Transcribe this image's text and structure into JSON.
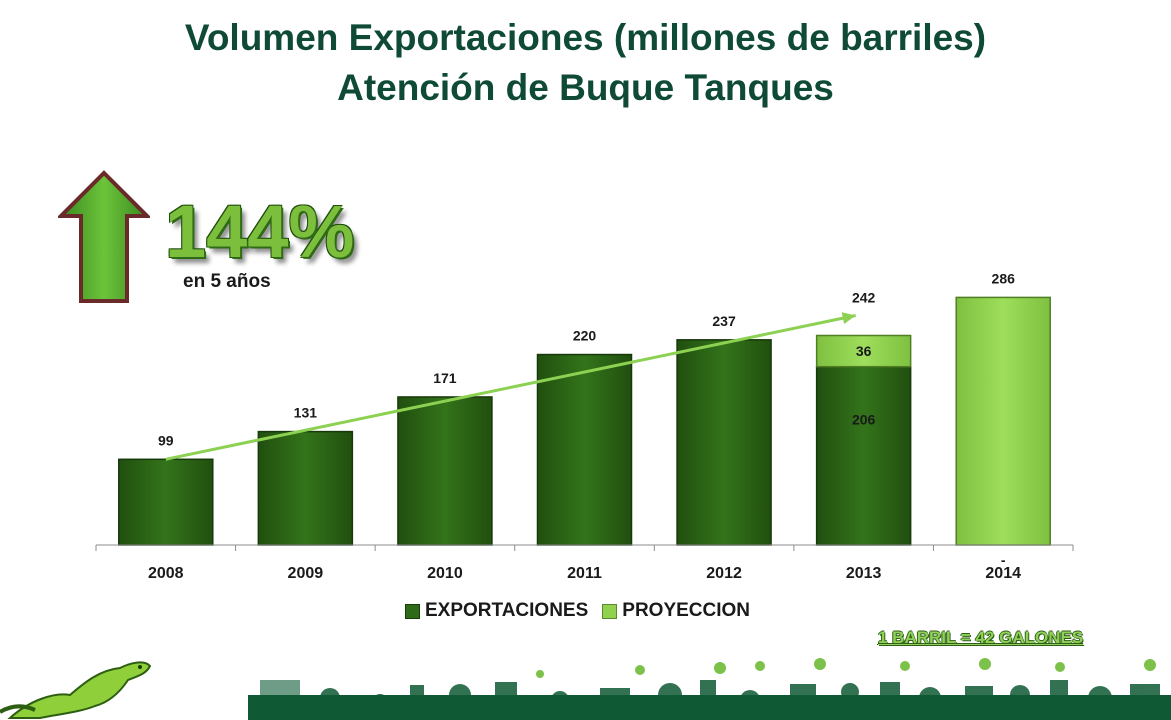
{
  "title_line1": "Volumen Exportaciones (millones de barriles)",
  "title_line2": "Atención de Buque Tanques",
  "growth": {
    "value": "144%",
    "caption": "en 5 años"
  },
  "note": "1 BARRIL  = 42 GALONES",
  "colors": {
    "title": "#0e4a35",
    "exportaciones": "#2e6b17",
    "proyeccion": "#92d050",
    "trend": "#8cd152",
    "arrow": "#4ea02a"
  },
  "icons": {
    "growth_arrow": "up-arrow-icon",
    "mascot": "iguana-icon"
  },
  "chart_data": {
    "type": "bar",
    "stacked": true,
    "categories": [
      "2008",
      "2009",
      "2010",
      "2011",
      "2012",
      "2013",
      "2014"
    ],
    "series": [
      {
        "name": "EXPORTACIONES",
        "values": [
          99,
          131,
          171,
          220,
          237,
          206,
          null
        ],
        "labels": [
          "99",
          "131",
          "171",
          "220",
          "237",
          "206",
          "-"
        ]
      },
      {
        "name": "PROYECCION",
        "values": [
          null,
          null,
          null,
          null,
          null,
          36,
          286
        ],
        "labels": [
          "",
          "",
          "",
          "",
          "",
          "36",
          "286"
        ]
      }
    ],
    "totals": [
      {
        "category": "2013",
        "value": 242,
        "label": "242"
      }
    ],
    "trend_line": {
      "from": "2008",
      "to": "2013"
    },
    "legend_position": "bottom",
    "grid": false
  }
}
